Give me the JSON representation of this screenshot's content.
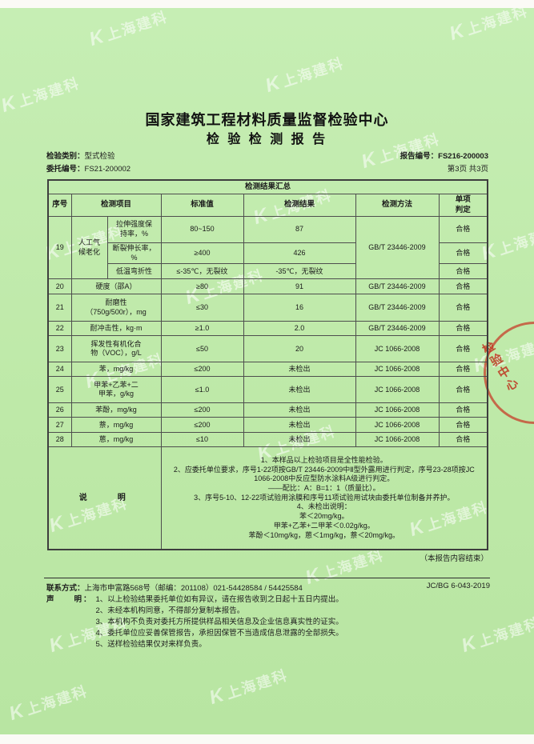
{
  "colors": {
    "paper_green": "#bee9a8",
    "seal_red": "#c73e2a",
    "table_border": "#4e4e4e"
  },
  "watermark": {
    "text": "上海建科",
    "logo_glyph": "K"
  },
  "seal": {
    "text": "检验中心"
  },
  "header": {
    "org_title": "国家建筑工程材料质量监督检验中心",
    "report_title": "检 验 检 测 报 告",
    "left": [
      {
        "label": "检验类别：",
        "value": "型式检验"
      },
      {
        "label": "委托编号：",
        "value": "FS21-200002"
      }
    ],
    "right": [
      {
        "label": "报告编号：",
        "value": "FS216-200003"
      },
      {
        "label": "",
        "value": "第3页 共3页"
      }
    ]
  },
  "table": {
    "title": "检测结果汇总",
    "headers": [
      "序号",
      "检测项目",
      "标准值",
      "检测结果",
      "检测方法",
      "单项\n判定"
    ],
    "rows": [
      {
        "cells": [
          {
            "t": "19",
            "rs": 3
          },
          {
            "t": "人工气\n候老化",
            "rs": 3
          },
          {
            "t": "拉伸强度保\n持率，%",
            "al": "l"
          },
          {
            "t": "80~150"
          },
          {
            "t": "87"
          },
          {
            "t": "GB/T 23446-2009",
            "rs": 3
          },
          {
            "t": "合格"
          }
        ]
      },
      {
        "cells": [
          {
            "t": "断裂伸长率，%",
            "al": "l"
          },
          {
            "t": "≥400"
          },
          {
            "t": "426"
          },
          {
            "t": "合格"
          }
        ]
      },
      {
        "cells": [
          {
            "t": "低温弯折性",
            "al": "l"
          },
          {
            "t": "≤-35℃，无裂纹"
          },
          {
            "t": "-35℃，无裂纹"
          },
          {
            "t": "合格"
          }
        ]
      },
      {
        "cells": [
          {
            "t": "20"
          },
          {
            "t": "硬度（邵A）",
            "cs": 2,
            "al": "l"
          },
          {
            "t": "≥80"
          },
          {
            "t": "91"
          },
          {
            "t": "GB/T 23446-2009"
          },
          {
            "t": "合格"
          }
        ]
      },
      {
        "cells": [
          {
            "t": "21"
          },
          {
            "t": "耐磨性\n（750g/500r），mg",
            "cs": 2,
            "al": "l"
          },
          {
            "t": "≤30"
          },
          {
            "t": "16"
          },
          {
            "t": "GB/T 23446-2009"
          },
          {
            "t": "合格"
          }
        ]
      },
      {
        "cells": [
          {
            "t": "22"
          },
          {
            "t": "耐冲击性，kg·m",
            "cs": 2,
            "al": "l"
          },
          {
            "t": "≥1.0"
          },
          {
            "t": "2.0"
          },
          {
            "t": "GB/T 23446-2009"
          },
          {
            "t": "合格"
          }
        ]
      },
      {
        "cells": [
          {
            "t": "23"
          },
          {
            "t": "挥发性有机化合\n物（VOC），g/L",
            "cs": 2,
            "al": "l"
          },
          {
            "t": "≤50"
          },
          {
            "t": "20"
          },
          {
            "t": "JC 1066-2008"
          },
          {
            "t": "合格"
          }
        ]
      },
      {
        "cells": [
          {
            "t": "24"
          },
          {
            "t": "苯，mg/kg",
            "cs": 2,
            "al": "l"
          },
          {
            "t": "≤200"
          },
          {
            "t": "未检出"
          },
          {
            "t": "JC 1066-2008"
          },
          {
            "t": "合格"
          }
        ]
      },
      {
        "cells": [
          {
            "t": "25"
          },
          {
            "t": "甲苯+乙苯+二\n甲苯，g/kg",
            "cs": 2,
            "al": "l"
          },
          {
            "t": "≤1.0"
          },
          {
            "t": "未检出"
          },
          {
            "t": "JC 1066-2008"
          },
          {
            "t": "合格"
          }
        ]
      },
      {
        "cells": [
          {
            "t": "26"
          },
          {
            "t": "苯酚，mg/kg",
            "cs": 2,
            "al": "l"
          },
          {
            "t": "≤200"
          },
          {
            "t": "未检出"
          },
          {
            "t": "JC 1066-2008"
          },
          {
            "t": "合格"
          }
        ]
      },
      {
        "cells": [
          {
            "t": "27"
          },
          {
            "t": "萘，mg/kg",
            "cs": 2,
            "al": "l"
          },
          {
            "t": "≤200"
          },
          {
            "t": "未检出"
          },
          {
            "t": "JC 1066-2008"
          },
          {
            "t": "合格"
          }
        ]
      },
      {
        "cells": [
          {
            "t": "28"
          },
          {
            "t": "蒽，mg/kg",
            "cs": 2,
            "al": "l"
          },
          {
            "t": "≤10"
          },
          {
            "t": "未检出"
          },
          {
            "t": "JC 1066-2008"
          },
          {
            "t": "合格"
          }
        ]
      }
    ],
    "note_label": "说　　明",
    "note_lines": [
      "1、本样品以上检验项目是全性能检验。",
      "2、应委托单位要求，序号1-22项按GB/T 23446-2009中Ⅱ型外露用进行判定，序号23-28项按JC 1066-2008中反应型防水涂料A级进行判定。",
      "——配比：A：B=1：1（质量比）。",
      "3、序号5-10、12-22项试验用涂膜和序号11项试验用试块由委托单位制备并养护。",
      "4、未检出说明：",
      "苯＜20mg/kg。",
      "甲苯+乙苯+二甲苯＜0.02g/kg。",
      "苯酚＜10mg/kg，蒽＜1mg/kg，萘＜20mg/kg。"
    ]
  },
  "end_note": "（本报告内容结束）",
  "footer": {
    "contact_label": "联系方式：",
    "contact": "上海市申富路568号（邮编：201108）021-54428584 / 54425584",
    "doc_code": "JC/BG 6-043-2019",
    "statement_label": "声　　明：",
    "statements": [
      "1、以上检验结果委托单位如有异议，请在报告收到之日起十五日内提出。",
      "2、未经本机构同意，不得部分复制本报告。",
      "3、本机构不负责对委托方所提供样品相关信息及企业信息真实性的证实。",
      "4、委托单位应妥善保管报告，承担因保管不当造成信息泄露的全部损失。",
      "5、送样检验结果仅对来样负责。"
    ]
  }
}
